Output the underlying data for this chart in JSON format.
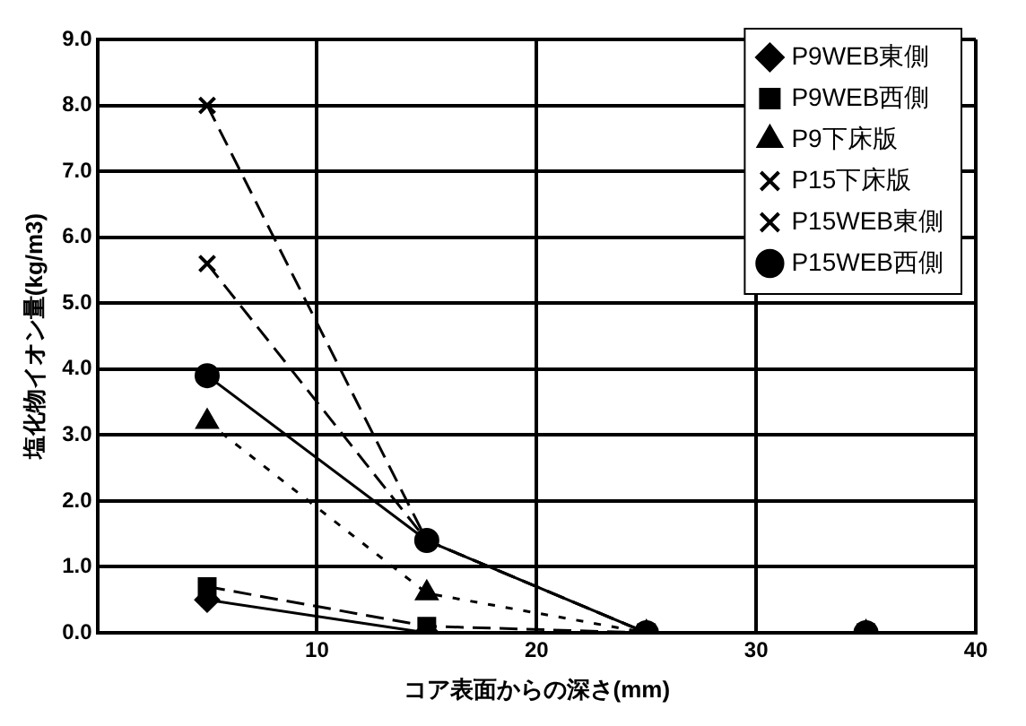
{
  "chart_data": {
    "type": "line",
    "xlabel": "コア表面からの深さ(mm)",
    "ylabel": "塩化物イオン量(kg/m3)",
    "x": [
      5,
      15,
      25,
      35
    ],
    "series": [
      {
        "name": "P9WEB東側",
        "color": "#000000",
        "values": [
          0.5,
          0.0,
          0.0,
          0.0
        ],
        "marker": "diamond",
        "line_style": "solid"
      },
      {
        "name": "P9WEB西側",
        "color": "#000000",
        "values": [
          0.7,
          0.1,
          0.0,
          0.0
        ],
        "marker": "square",
        "line_style": "dashed"
      },
      {
        "name": "P9下床版",
        "color": "#000000",
        "values": [
          3.2,
          0.6,
          0.0,
          0.0
        ],
        "marker": "triangle",
        "line_style": "dotted"
      },
      {
        "name": "P15下床版",
        "color": "#000000",
        "values": [
          8.0,
          1.4,
          0.0,
          0.0
        ],
        "marker": "cross",
        "line_style": "dashed"
      },
      {
        "name": "P15WEB東側",
        "color": "#000000",
        "values": [
          5.6,
          1.4,
          0.0,
          0.0
        ],
        "marker": "cross",
        "line_style": "dashed"
      },
      {
        "name": "P15WEB西側",
        "color": "#000000",
        "values": [
          3.9,
          1.4,
          0.0,
          0.0
        ],
        "marker": "circle",
        "line_style": "solid"
      }
    ],
    "xlim": [
      0,
      40
    ],
    "xticks": [
      10,
      20,
      30,
      40
    ],
    "ylim": [
      0,
      9
    ],
    "yticks": [
      {
        "value": 0,
        "label": "0.0"
      },
      {
        "value": 1,
        "label": "1.0"
      },
      {
        "value": 2,
        "label": "2.0"
      },
      {
        "value": 3,
        "label": "3.0"
      },
      {
        "value": 4,
        "label": "4.0"
      },
      {
        "value": 5,
        "label": "5.0"
      },
      {
        "value": 6,
        "label": "6.0"
      },
      {
        "value": 7,
        "label": "7.0"
      },
      {
        "value": 8,
        "label": "8.0"
      },
      {
        "value": 9,
        "label": "9.0"
      }
    ],
    "grid": true,
    "legend": "top right"
  }
}
